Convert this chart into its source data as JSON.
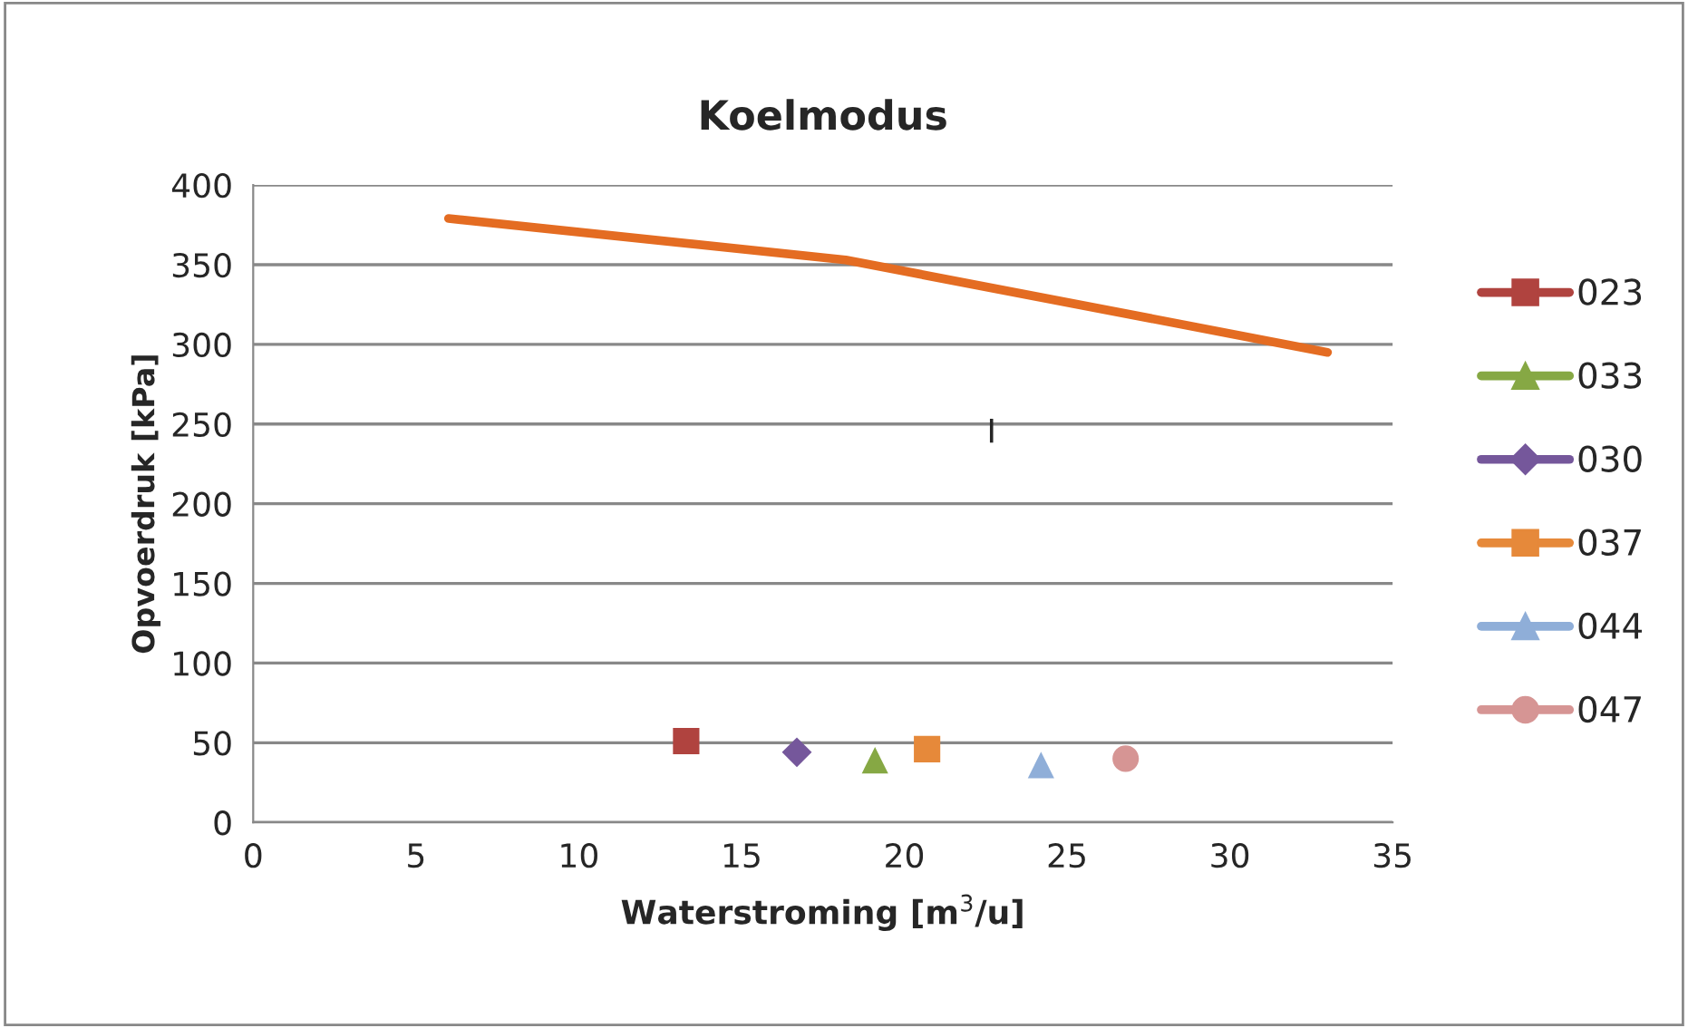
{
  "chart_data": {
    "type": "scatter",
    "title": "Koelmodus",
    "xlabel": "Waterstroming [m$^{3}$/u]",
    "ylabel": "Opvoerdruk [kPa]",
    "xlim": [
      0,
      35
    ],
    "xticks": [
      0,
      5,
      10,
      15,
      20,
      25,
      30,
      35
    ],
    "ylim": [
      0,
      400
    ],
    "yticks": [
      0,
      50,
      100,
      150,
      200,
      250,
      300,
      350,
      400
    ],
    "grid": "y",
    "legend": "right",
    "annotations": [
      "I"
    ],
    "series": [
      {
        "type": "line",
        "color": "#e46c22",
        "marker": "none",
        "x": [
          6.0,
          18.2,
          33.0
        ],
        "values": [
          379,
          353,
          295
        ]
      },
      {
        "name": "023",
        "color": "#b0433f",
        "marker": "square",
        "x": [
          13.3
        ],
        "values": [
          51
        ]
      },
      {
        "name": "033",
        "color": "#86a844",
        "marker": "triangle",
        "x": [
          19.1
        ],
        "values": [
          39
        ]
      },
      {
        "name": "030",
        "color": "#75579b",
        "marker": "diamond",
        "x": [
          16.7
        ],
        "values": [
          44
        ]
      },
      {
        "name": "037",
        "color": "#e6893a",
        "marker": "square",
        "x": [
          20.7
        ],
        "values": [
          46
        ]
      },
      {
        "name": "044",
        "color": "#8faed8",
        "marker": "triangle",
        "x": [
          24.2
        ],
        "values": [
          36
        ]
      },
      {
        "name": "047",
        "color": "#d69594",
        "marker": "circle",
        "x": [
          26.8
        ],
        "values": [
          40
        ]
      }
    ]
  }
}
